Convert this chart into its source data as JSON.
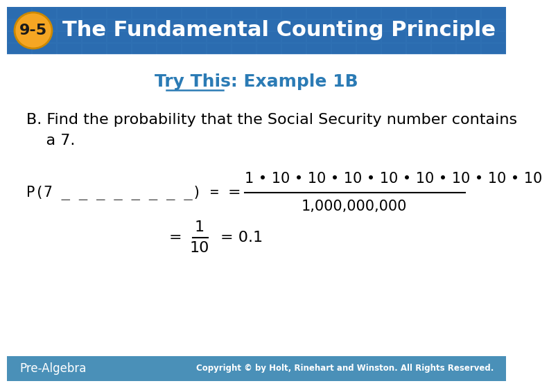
{
  "header_bg_color": "#2B6CB0",
  "header_text": "The Fundamental Counting Principle",
  "header_badge_text": "9-5",
  "header_badge_bg": "#F5A623",
  "header_text_color": "#FFFFFF",
  "subtitle_text": "Try This: Example 1B",
  "subtitle_color": "#2B7BB5",
  "body_bg_color": "#FFFFFF",
  "body_text_color": "#000000",
  "line1": "B. Find the probability that the Social Security number contains",
  "line2": "    a 7.",
  "fraction_numerator": "1 • 10 • 10 • 10 • 10 • 10 • 10 • 10 • 10",
  "fraction_denominator": "1,000,000,000",
  "footer_bg_color": "#4A90B8",
  "footer_left": "Pre-Algebra",
  "footer_right": "Copyright © by Holt, Rinehart and Winston. All Rights Reserved.",
  "footer_text_color": "#FFFFFF",
  "grid_color": "#3A7DC0",
  "badge_border_color": "#CC8800",
  "badge_text_color": "#1A1A1A"
}
